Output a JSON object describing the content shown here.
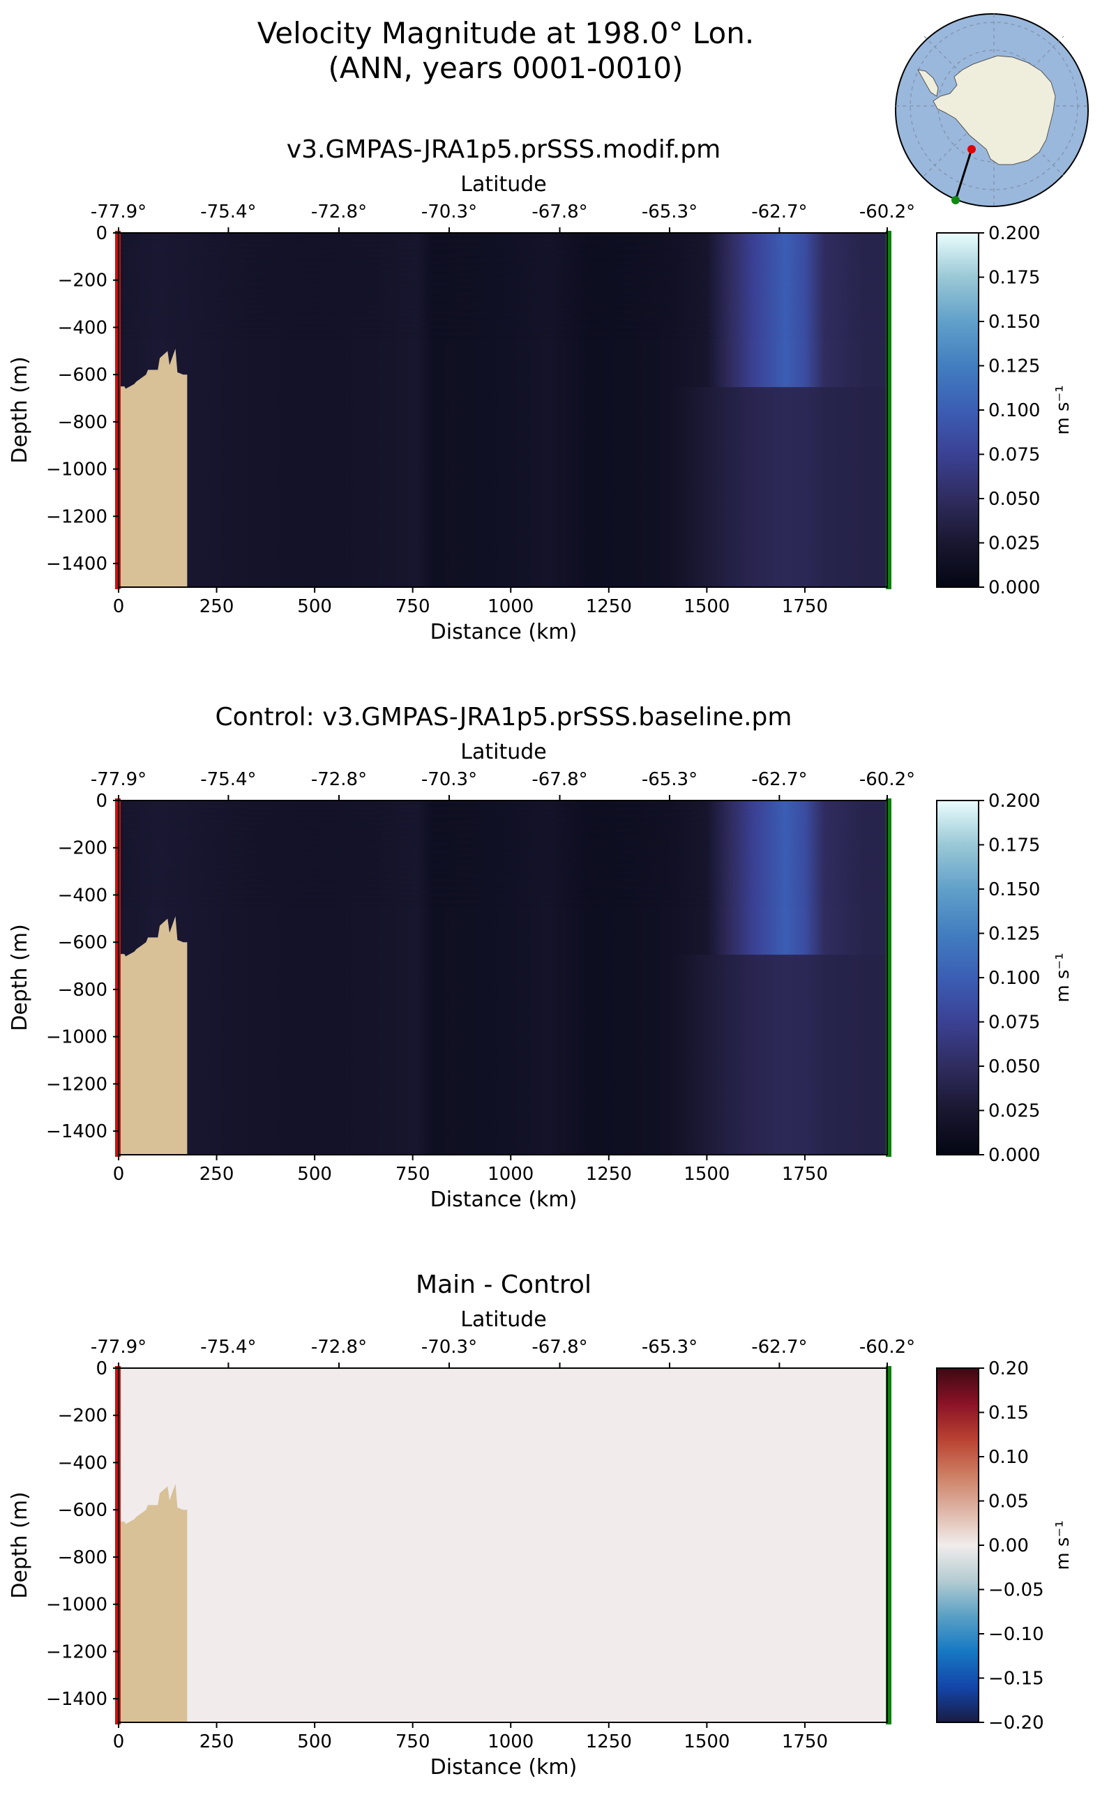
{
  "figure": {
    "title_line1": "Velocity Magnitude at 198.0° Lon.",
    "title_line2": "(ANN, years 0001-0010)"
  },
  "inset_map": {
    "region": "Antarctica",
    "transect_start_color": "#e00000",
    "transect_end_color": "#118811",
    "ocean_color": "#9ab8dc",
    "land_color": "#efeedd"
  },
  "colors": {
    "topography": "#d8c097",
    "start_marker": "#d01010",
    "end_marker": "#108010"
  },
  "chart_data": [
    {
      "type": "heatmap",
      "title": "v3.GMPAS-JRA1p5.prSSS.modif.pm",
      "xlabel": "Distance (km)",
      "ylabel": "Depth (m)",
      "top_axis_label": "Latitude",
      "xlim": [
        0,
        1960
      ],
      "ylim": [
        -1500,
        0
      ],
      "x_ticks": [
        0,
        250,
        500,
        750,
        1000,
        1250,
        1500,
        1750
      ],
      "y_ticks": [
        0,
        -200,
        -400,
        -600,
        -800,
        -1000,
        -1200,
        -1400
      ],
      "lat_ticks": [
        "-77.9°",
        "-75.4°",
        "-72.8°",
        "-70.3°",
        "-67.8°",
        "-65.3°",
        "-62.7°",
        "-60.2°"
      ],
      "lat_tick_distances": [
        0,
        280,
        562,
        843,
        1125,
        1405,
        1685,
        1960
      ],
      "colorbar": {
        "label": "m s⁻¹",
        "ticks": [
          "0.000",
          "0.025",
          "0.050",
          "0.075",
          "0.100",
          "0.125",
          "0.150",
          "0.175",
          "0.200"
        ],
        "min": 0.0,
        "max": 0.2,
        "colormap": "ice"
      },
      "velocity_profile_km": [
        0,
        100,
        200,
        350,
        500,
        650,
        760,
        800,
        900,
        1000,
        1100,
        1150,
        1200,
        1300,
        1400,
        1500,
        1560,
        1620,
        1700,
        1750,
        1800,
        1900,
        1960
      ],
      "velocity_profile_surface": [
        0.022,
        0.026,
        0.024,
        0.019,
        0.018,
        0.019,
        0.023,
        0.013,
        0.014,
        0.016,
        0.019,
        0.015,
        0.012,
        0.013,
        0.015,
        0.022,
        0.05,
        0.075,
        0.1,
        0.085,
        0.05,
        0.04,
        0.04
      ],
      "velocity_profile_bottom": [
        0.022,
        0.026,
        0.024,
        0.019,
        0.018,
        0.019,
        0.023,
        0.013,
        0.014,
        0.016,
        0.019,
        0.015,
        0.012,
        0.013,
        0.015,
        0.028,
        0.036,
        0.042,
        0.046,
        0.045,
        0.04,
        0.038,
        0.038
      ],
      "bathymetry_km": [
        0,
        15,
        18,
        40,
        45,
        70,
        75,
        100,
        105,
        125,
        130,
        145,
        150,
        165,
        175
      ],
      "bathymetry_depth": [
        -650,
        -650,
        -660,
        -640,
        -630,
        -600,
        -580,
        -580,
        -530,
        -500,
        -560,
        -490,
        -590,
        -600,
        -600
      ]
    },
    {
      "type": "heatmap",
      "title": "Control: v3.GMPAS-JRA1p5.prSSS.baseline.pm",
      "xlabel": "Distance (km)",
      "ylabel": "Depth (m)",
      "top_axis_label": "Latitude",
      "xlim": [
        0,
        1960
      ],
      "ylim": [
        -1500,
        0
      ],
      "x_ticks": [
        0,
        250,
        500,
        750,
        1000,
        1250,
        1500,
        1750
      ],
      "y_ticks": [
        0,
        -200,
        -400,
        -600,
        -800,
        -1000,
        -1200,
        -1400
      ],
      "lat_ticks": [
        "-77.9°",
        "-75.4°",
        "-72.8°",
        "-70.3°",
        "-67.8°",
        "-65.3°",
        "-62.7°",
        "-60.2°"
      ],
      "lat_tick_distances": [
        0,
        280,
        562,
        843,
        1125,
        1405,
        1685,
        1960
      ],
      "colorbar": {
        "label": "m s⁻¹",
        "ticks": [
          "0.000",
          "0.025",
          "0.050",
          "0.075",
          "0.100",
          "0.125",
          "0.150",
          "0.175",
          "0.200"
        ],
        "min": 0.0,
        "max": 0.2,
        "colormap": "ice"
      },
      "velocity_profile_km": [
        0,
        100,
        200,
        350,
        500,
        650,
        760,
        800,
        900,
        1000,
        1100,
        1150,
        1200,
        1300,
        1400,
        1500,
        1560,
        1620,
        1700,
        1750,
        1800,
        1900,
        1960
      ],
      "velocity_profile_surface": [
        0.022,
        0.026,
        0.024,
        0.019,
        0.018,
        0.019,
        0.023,
        0.013,
        0.014,
        0.016,
        0.019,
        0.015,
        0.012,
        0.013,
        0.015,
        0.022,
        0.05,
        0.075,
        0.1,
        0.085,
        0.05,
        0.04,
        0.04
      ],
      "velocity_profile_bottom": [
        0.022,
        0.026,
        0.024,
        0.019,
        0.018,
        0.019,
        0.023,
        0.013,
        0.014,
        0.016,
        0.019,
        0.015,
        0.012,
        0.013,
        0.015,
        0.028,
        0.036,
        0.042,
        0.046,
        0.045,
        0.04,
        0.038,
        0.038
      ],
      "bathymetry_km": [
        0,
        15,
        18,
        40,
        45,
        70,
        75,
        100,
        105,
        125,
        130,
        145,
        150,
        165,
        175
      ],
      "bathymetry_depth": [
        -650,
        -650,
        -660,
        -640,
        -630,
        -600,
        -580,
        -580,
        -530,
        -500,
        -560,
        -490,
        -590,
        -600,
        -600
      ]
    },
    {
      "type": "heatmap",
      "title": "Main - Control",
      "xlabel": "Distance (km)",
      "ylabel": "Depth (m)",
      "top_axis_label": "Latitude",
      "xlim": [
        0,
        1960
      ],
      "ylim": [
        -1500,
        0
      ],
      "x_ticks": [
        0,
        250,
        500,
        750,
        1000,
        1250,
        1500,
        1750
      ],
      "y_ticks": [
        0,
        -200,
        -400,
        -600,
        -800,
        -1000,
        -1200,
        -1400
      ],
      "lat_ticks": [
        "-77.9°",
        "-75.4°",
        "-72.8°",
        "-70.3°",
        "-67.8°",
        "-65.3°",
        "-62.7°",
        "-60.2°"
      ],
      "lat_tick_distances": [
        0,
        280,
        562,
        843,
        1125,
        1405,
        1685,
        1960
      ],
      "colorbar": {
        "label": "m s⁻¹",
        "ticks": [
          "0.20",
          "0.15",
          "0.10",
          "0.05",
          "0.00",
          "−0.05",
          "−0.10",
          "−0.15",
          "−0.20"
        ],
        "min": -0.2,
        "max": 0.2,
        "colormap": "balance"
      },
      "difference_value": 0.0,
      "bathymetry_km": [
        0,
        15,
        18,
        40,
        45,
        70,
        75,
        100,
        105,
        125,
        130,
        145,
        150,
        165,
        175
      ],
      "bathymetry_depth": [
        -650,
        -650,
        -660,
        -640,
        -630,
        -600,
        -580,
        -580,
        -530,
        -500,
        -560,
        -490,
        -590,
        -600,
        -600
      ]
    }
  ]
}
